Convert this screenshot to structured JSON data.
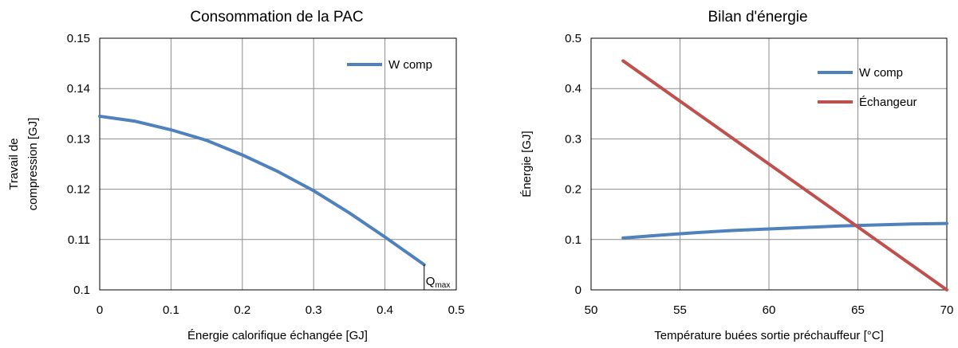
{
  "chart_data": [
    {
      "type": "line",
      "title": "Consommation de la PAC",
      "xlabel": "Énergie calorifique échangée [GJ]",
      "ylabel_lines": [
        "Travail de",
        "compression [GJ]"
      ],
      "xlim": [
        0,
        0.5
      ],
      "ylim": [
        0.1,
        0.15
      ],
      "x_ticks": [
        "0",
        "0.1",
        "0.2",
        "0.3",
        "0.4",
        "0.5"
      ],
      "y_ticks": [
        "0.1",
        "0.11",
        "0.12",
        "0.13",
        "0.14",
        "0.15"
      ],
      "grid": true,
      "legend_position": "top-right",
      "series": [
        {
          "name": "W comp",
          "color": "#4f81bd",
          "x": [
            0,
            0.05,
            0.1,
            0.15,
            0.2,
            0.25,
            0.3,
            0.35,
            0.4,
            0.455
          ],
          "y": [
            0.1345,
            0.1335,
            0.1318,
            0.1297,
            0.1268,
            0.1235,
            0.1197,
            0.1153,
            0.1105,
            0.105
          ]
        }
      ],
      "annotation": {
        "text": "Q",
        "subscript": "max",
        "x": 0.455,
        "y": 0.1
      }
    },
    {
      "type": "line",
      "title": "Bilan d'énergie",
      "xlabel": "Température buées sortie préchauffeur [°C]",
      "ylabel": "Énergie [GJ]",
      "xlim": [
        50,
        70
      ],
      "ylim": [
        0,
        0.5
      ],
      "x_ticks": [
        "50",
        "55",
        "60",
        "65",
        "70"
      ],
      "y_ticks": [
        "0",
        "0.1",
        "0.2",
        "0.3",
        "0.4",
        "0.5"
      ],
      "grid": true,
      "legend_position": "top-right",
      "series": [
        {
          "name": "W comp",
          "color": "#4f81bd",
          "x": [
            51.8,
            54,
            56,
            58,
            60,
            62,
            64,
            66,
            68,
            70
          ],
          "y": [
            0.103,
            0.109,
            0.114,
            0.118,
            0.121,
            0.124,
            0.127,
            0.129,
            0.131,
            0.132
          ]
        },
        {
          "name": "Échangeur",
          "color": "#c0504d",
          "x": [
            51.8,
            70
          ],
          "y": [
            0.455,
            0.0
          ]
        }
      ]
    }
  ]
}
